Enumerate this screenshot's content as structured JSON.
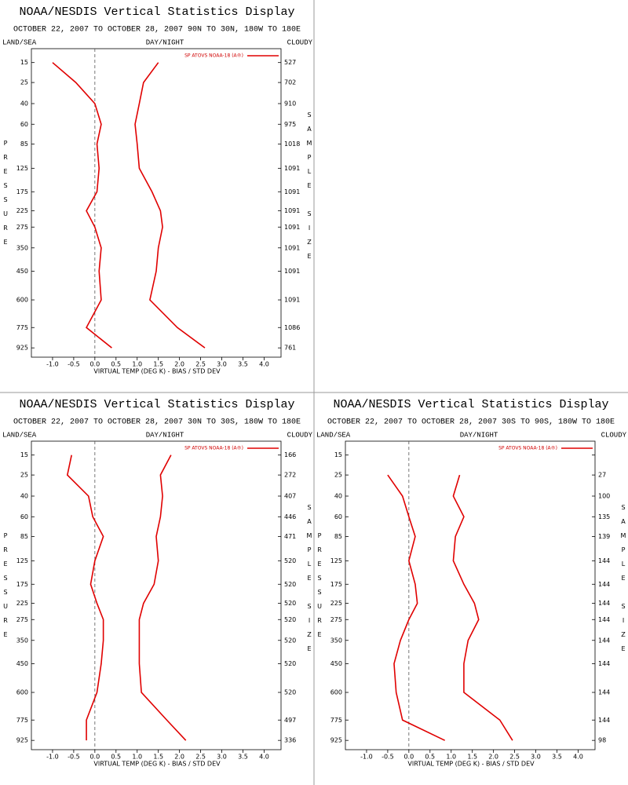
{
  "chart_data": [
    {
      "type": "line",
      "title": "NOAA/NESDIS Vertical Statistics Display",
      "subtitle": "OCTOBER 22, 2007 TO OCTOBER 28, 2007 90N TO 30N, 180W TO 180E",
      "left_header": "LAND/SEA",
      "center_header": "DAY/NIGHT",
      "right_header": "CLOUDY",
      "ylabel": "PRESSURE",
      "y2label": "SAMPLE SIZE",
      "xlabel": "VIRTUAL TEMP (DEG K) - BIAS / STD DEV",
      "levels": [
        15,
        25,
        40,
        60,
        85,
        125,
        175,
        225,
        275,
        350,
        450,
        600,
        775,
        925
      ],
      "ylim": [
        10,
        1000
      ],
      "y_power": 0.286,
      "xlim": [
        -1.5,
        4.4
      ],
      "xticks": [
        {
          "value": -1,
          "label": "-1.0"
        },
        -0.5,
        {
          "value": 0,
          "label": "0.0"
        },
        0.5,
        {
          "value": 1,
          "label": "1.0"
        },
        1.5,
        {
          "value": 2,
          "label": "2.0"
        },
        2.5,
        {
          "value": 3,
          "label": "3.0"
        },
        3.5,
        {
          "value": 4,
          "label": "4.0"
        }
      ],
      "zero_line": true,
      "legend": "upper right",
      "sample_size": [
        527,
        702,
        910,
        975,
        1018,
        1091,
        1091,
        1091,
        1091,
        1091,
        1091,
        1091,
        1086,
        761
      ],
      "series": [
        {
          "name": "SP ATOVS NOAA-18 (A®)",
          "color": "#e00000",
          "values": [
            -1.0,
            -0.45,
            0.0,
            0.15,
            0.05,
            0.1,
            0.05,
            -0.2,
            0.0,
            0.15,
            0.1,
            0.15,
            -0.2,
            0.4
          ]
        },
        {
          "color": "#e00000",
          "values": [
            1.5,
            1.15,
            1.05,
            0.95,
            1.0,
            1.05,
            1.35,
            1.55,
            1.6,
            1.5,
            1.45,
            1.3,
            1.95,
            2.6
          ]
        }
      ]
    },
    {
      "type": "line",
      "title": "NOAA/NESDIS Vertical Statistics Display",
      "subtitle": "OCTOBER 22, 2007 TO OCTOBER 28, 2007 30N TO 30S, 180W TO 180E",
      "left_header": "LAND/SEA",
      "center_header": "DAY/NIGHT",
      "right_header": "CLOUDY",
      "ylabel": "PRESSURE",
      "y2label": "SAMPLE SIZE",
      "xlabel": "VIRTUAL TEMP (DEG K) - BIAS / STD DEV",
      "levels": [
        15,
        25,
        40,
        60,
        85,
        125,
        175,
        225,
        275,
        350,
        450,
        600,
        775,
        925
      ],
      "ylim": [
        10,
        1000
      ],
      "y_power": 0.286,
      "xlim": [
        -1.5,
        4.4
      ],
      "xticks": [
        {
          "value": -1,
          "label": "-1.0"
        },
        -0.5,
        {
          "value": 0,
          "label": "0.0"
        },
        0.5,
        {
          "value": 1,
          "label": "1.0"
        },
        1.5,
        {
          "value": 2,
          "label": "2.0"
        },
        2.5,
        {
          "value": 3,
          "label": "3.0"
        },
        3.5,
        {
          "value": 4,
          "label": "4.0"
        }
      ],
      "zero_line": true,
      "legend": "upper right",
      "sample_size": [
        166,
        272,
        407,
        446,
        471,
        520,
        520,
        520,
        520,
        520,
        520,
        520,
        497,
        336
      ],
      "series": [
        {
          "name": "SP ATOVS NOAA-18 (A®)",
          "color": "#e00000",
          "values": [
            -0.55,
            -0.65,
            -0.15,
            -0.05,
            0.2,
            0.0,
            -0.1,
            0.05,
            0.2,
            0.2,
            0.15,
            0.05,
            -0.2,
            -0.2
          ]
        },
        {
          "color": "#e00000",
          "values": [
            1.8,
            1.55,
            1.6,
            1.55,
            1.45,
            1.5,
            1.4,
            1.15,
            1.05,
            1.05,
            1.05,
            1.1,
            1.7,
            2.15
          ]
        }
      ]
    },
    {
      "type": "line",
      "title": "NOAA/NESDIS Vertical Statistics Display",
      "subtitle": "OCTOBER 22, 2007 TO OCTOBER 28, 2007 30S TO 90S, 180W TO 180E",
      "left_header": "LAND/SEA",
      "center_header": "DAY/NIGHT",
      "right_header": "CLOUDY",
      "ylabel": "PRESSURE",
      "y2label": "SAMPLE SIZE",
      "xlabel": "VIRTUAL TEMP (DEG K) - BIAS / STD DEV",
      "levels": [
        15,
        25,
        40,
        60,
        85,
        125,
        175,
        225,
        275,
        350,
        450,
        600,
        775,
        925
      ],
      "ylim": [
        10,
        1000
      ],
      "y_power": 0.286,
      "xlim": [
        -1.5,
        4.4
      ],
      "xticks": [
        {
          "value": -1,
          "label": "-1.0"
        },
        -0.5,
        {
          "value": 0,
          "label": "0.0"
        },
        0.5,
        {
          "value": 1,
          "label": "1.0"
        },
        1.5,
        {
          "value": 2,
          "label": "2.0"
        },
        2.5,
        {
          "value": 3,
          "label": "3.0"
        },
        3.5,
        {
          "value": 4,
          "label": "4.0"
        }
      ],
      "zero_line": true,
      "legend": "upper right",
      "sample_size": [
        null,
        27,
        100,
        135,
        139,
        144,
        144,
        144,
        144,
        144,
        144,
        144,
        144,
        98
      ],
      "series": [
        {
          "name": "SP ATOVS NOAA-18 (A®)",
          "color": "#e00000",
          "values": [
            null,
            -0.5,
            -0.15,
            0.0,
            0.15,
            0.0,
            0.15,
            0.2,
            0.0,
            -0.2,
            -0.35,
            -0.3,
            -0.15,
            0.85
          ]
        },
        {
          "color": "#e00000",
          "values": [
            null,
            1.2,
            1.05,
            1.3,
            1.1,
            1.05,
            1.3,
            1.55,
            1.65,
            1.4,
            1.3,
            1.3,
            2.15,
            2.45
          ]
        }
      ]
    }
  ]
}
